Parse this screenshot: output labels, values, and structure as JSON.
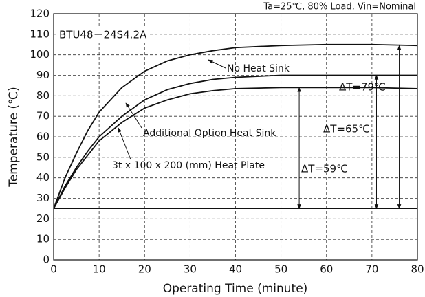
{
  "chart_data": {
    "type": "line",
    "note": "Ta=25℃, 80% Load, Vin=Nominal",
    "model": "BTU48－24S4.2A",
    "x_label": "Operating Time (minute)",
    "y_label": "Temperature (℃)",
    "xlim": [
      0,
      80
    ],
    "ylim": [
      0,
      120
    ],
    "xticks": [
      0,
      10,
      20,
      30,
      40,
      50,
      60,
      70,
      80
    ],
    "yticks": [
      0,
      10,
      20,
      30,
      40,
      50,
      60,
      70,
      80,
      90,
      100,
      110,
      120
    ],
    "grid": true,
    "ambient": 25,
    "x": [
      0,
      2.5,
      5,
      7.5,
      10,
      15,
      20,
      25,
      30,
      35,
      40,
      50,
      60,
      70,
      80
    ],
    "series": [
      {
        "name": "No Heat Sink",
        "color": "#111111",
        "values": [
          25,
          40,
          52,
          63,
          72,
          84,
          92,
          97,
          100,
          102,
          103.5,
          104.5,
          105,
          105,
          104.5
        ]
      },
      {
        "name": "Additional Option Heat Sink",
        "color": "#111111",
        "values": [
          25,
          36,
          45,
          53,
          60,
          70,
          78,
          83,
          86,
          88,
          89,
          90,
          90,
          90,
          90
        ]
      },
      {
        "name": "3t x 100 x 200 (mm) Heat Plate",
        "color": "#111111",
        "values": [
          25,
          35,
          44,
          51,
          58,
          67,
          74,
          78,
          81,
          82.5,
          83.5,
          84,
          84,
          84,
          83.5
        ]
      }
    ],
    "delta_t": [
      {
        "label": "ΔT=79℃",
        "x": 76,
        "from": 25,
        "to": 104.5
      },
      {
        "label": "ΔT=65℃",
        "x": 71,
        "from": 25,
        "to": 90
      },
      {
        "label": "ΔT=59℃",
        "x": 54,
        "from": 25,
        "to": 84
      }
    ]
  }
}
